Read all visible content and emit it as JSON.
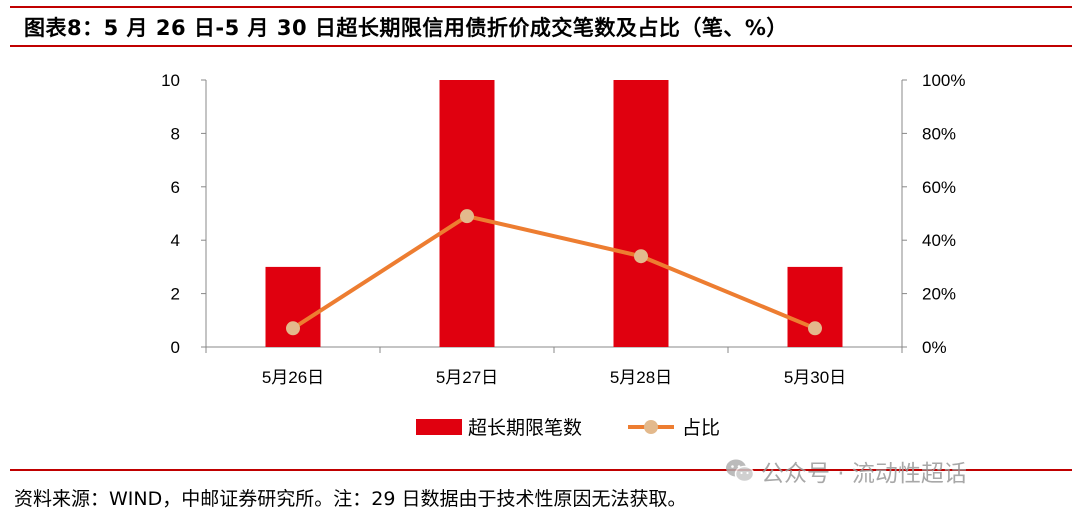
{
  "title": "图表8：5 月 26 日-5 月 30 日超长期限信用债折价成交笔数及占比（笔、%）",
  "source": "资料来源：WIND，中邮证券研究所。注：29 日数据由于技术性原因无法获取。",
  "watermark": {
    "icon": "wechat-icon",
    "text": "公众号 · 流动性超话"
  },
  "colors": {
    "rule": "#c00000",
    "bar": "#e0000f",
    "line": "#ed7d31",
    "marker": "#e3b98c"
  },
  "chart_data": {
    "type": "bar",
    "categories": [
      "5月26日",
      "5月27日",
      "5月28日",
      "5月30日"
    ],
    "series": [
      {
        "name": "超长期限笔数",
        "type": "bar",
        "axis": "left",
        "values": [
          3,
          10,
          10,
          3
        ]
      },
      {
        "name": "占比",
        "type": "line",
        "axis": "right",
        "values": [
          7,
          49,
          34,
          7
        ]
      }
    ],
    "y_left": {
      "lim": [
        0,
        10
      ],
      "ticks": [
        "0",
        "2",
        "4",
        "6",
        "8",
        "10"
      ]
    },
    "y_right": {
      "lim": [
        0,
        100
      ],
      "ticks": [
        "0%",
        "20%",
        "40%",
        "60%",
        "80%",
        "100%"
      ]
    },
    "legend_position": "bottom",
    "grid": false
  }
}
